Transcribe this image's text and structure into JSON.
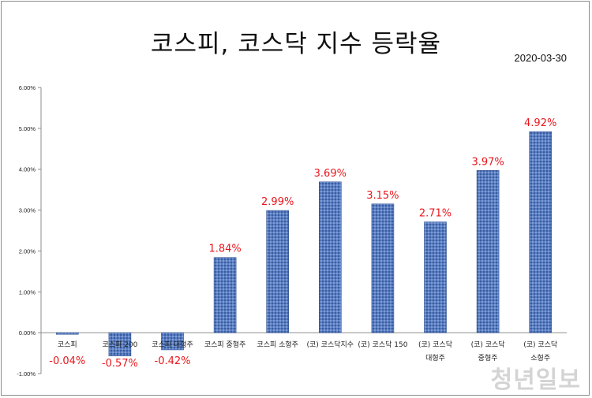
{
  "chart_data": {
    "type": "bar",
    "title": "코스피, 코스닥 지수 등락율",
    "date": "2020-03-30",
    "xlabel": "",
    "ylabel": "",
    "ylim": [
      -1.0,
      6.0
    ],
    "yticks": [
      "-1.00%",
      "0.00%",
      "1.00%",
      "2.00%",
      "3.00%",
      "4.00%",
      "5.00%",
      "6.00%"
    ],
    "grid": false,
    "legend": "none",
    "categories": [
      [
        "코스피"
      ],
      [
        "코스피 200"
      ],
      [
        "코스피 대형주"
      ],
      [
        "코스피 중형주"
      ],
      [
        "코스피 소형주"
      ],
      [
        "(코) 코스닥지수"
      ],
      [
        "(코) 코스닥 150"
      ],
      [
        "(코) 코스닥",
        "대형주"
      ],
      [
        "(코) 코스닥",
        "중형주"
      ],
      [
        "(코) 코스닥",
        "소형주"
      ]
    ],
    "values": [
      -0.04,
      -0.57,
      -0.42,
      1.84,
      2.99,
      3.69,
      3.15,
      2.71,
      3.97,
      4.92
    ],
    "data_labels": [
      "-0.04%",
      "-0.57%",
      "-0.42%",
      "1.84%",
      "2.99%",
      "3.69%",
      "3.15%",
      "2.71%",
      "3.97%",
      "4.92%"
    ],
    "colors": {
      "bar": "#4a6fb5",
      "bar_dark": "#2f4f8f",
      "label": "#e8171d",
      "axis": "#8c8c8c"
    }
  },
  "watermark": "청년일보"
}
